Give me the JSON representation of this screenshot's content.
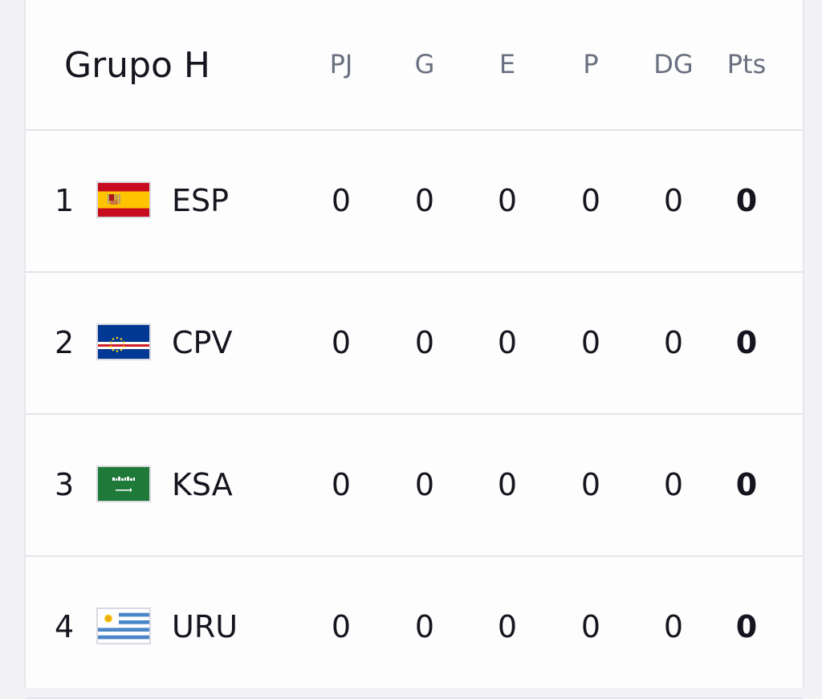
{
  "group": {
    "title": "Grupo H",
    "columns": [
      "PJ",
      "G",
      "E",
      "P",
      "DG",
      "Pts"
    ]
  },
  "teams": [
    {
      "position": "1",
      "code": "ESP",
      "flag": "spain-flag-icon",
      "pj": "0",
      "g": "0",
      "e": "0",
      "p": "0",
      "dg": "0",
      "pts": "0"
    },
    {
      "position": "2",
      "code": "CPV",
      "flag": "cape-verde-flag-icon",
      "pj": "0",
      "g": "0",
      "e": "0",
      "p": "0",
      "dg": "0",
      "pts": "0"
    },
    {
      "position": "3",
      "code": "KSA",
      "flag": "saudi-arabia-flag-icon",
      "pj": "0",
      "g": "0",
      "e": "0",
      "p": "0",
      "dg": "0",
      "pts": "0"
    },
    {
      "position": "4",
      "code": "URU",
      "flag": "uruguay-flag-icon",
      "pj": "0",
      "g": "0",
      "e": "0",
      "p": "0",
      "dg": "0",
      "pts": "0"
    }
  ],
  "colors": {
    "text": "#15151f",
    "header_text": "#6a7080",
    "divider": "#e3e3ec"
  }
}
